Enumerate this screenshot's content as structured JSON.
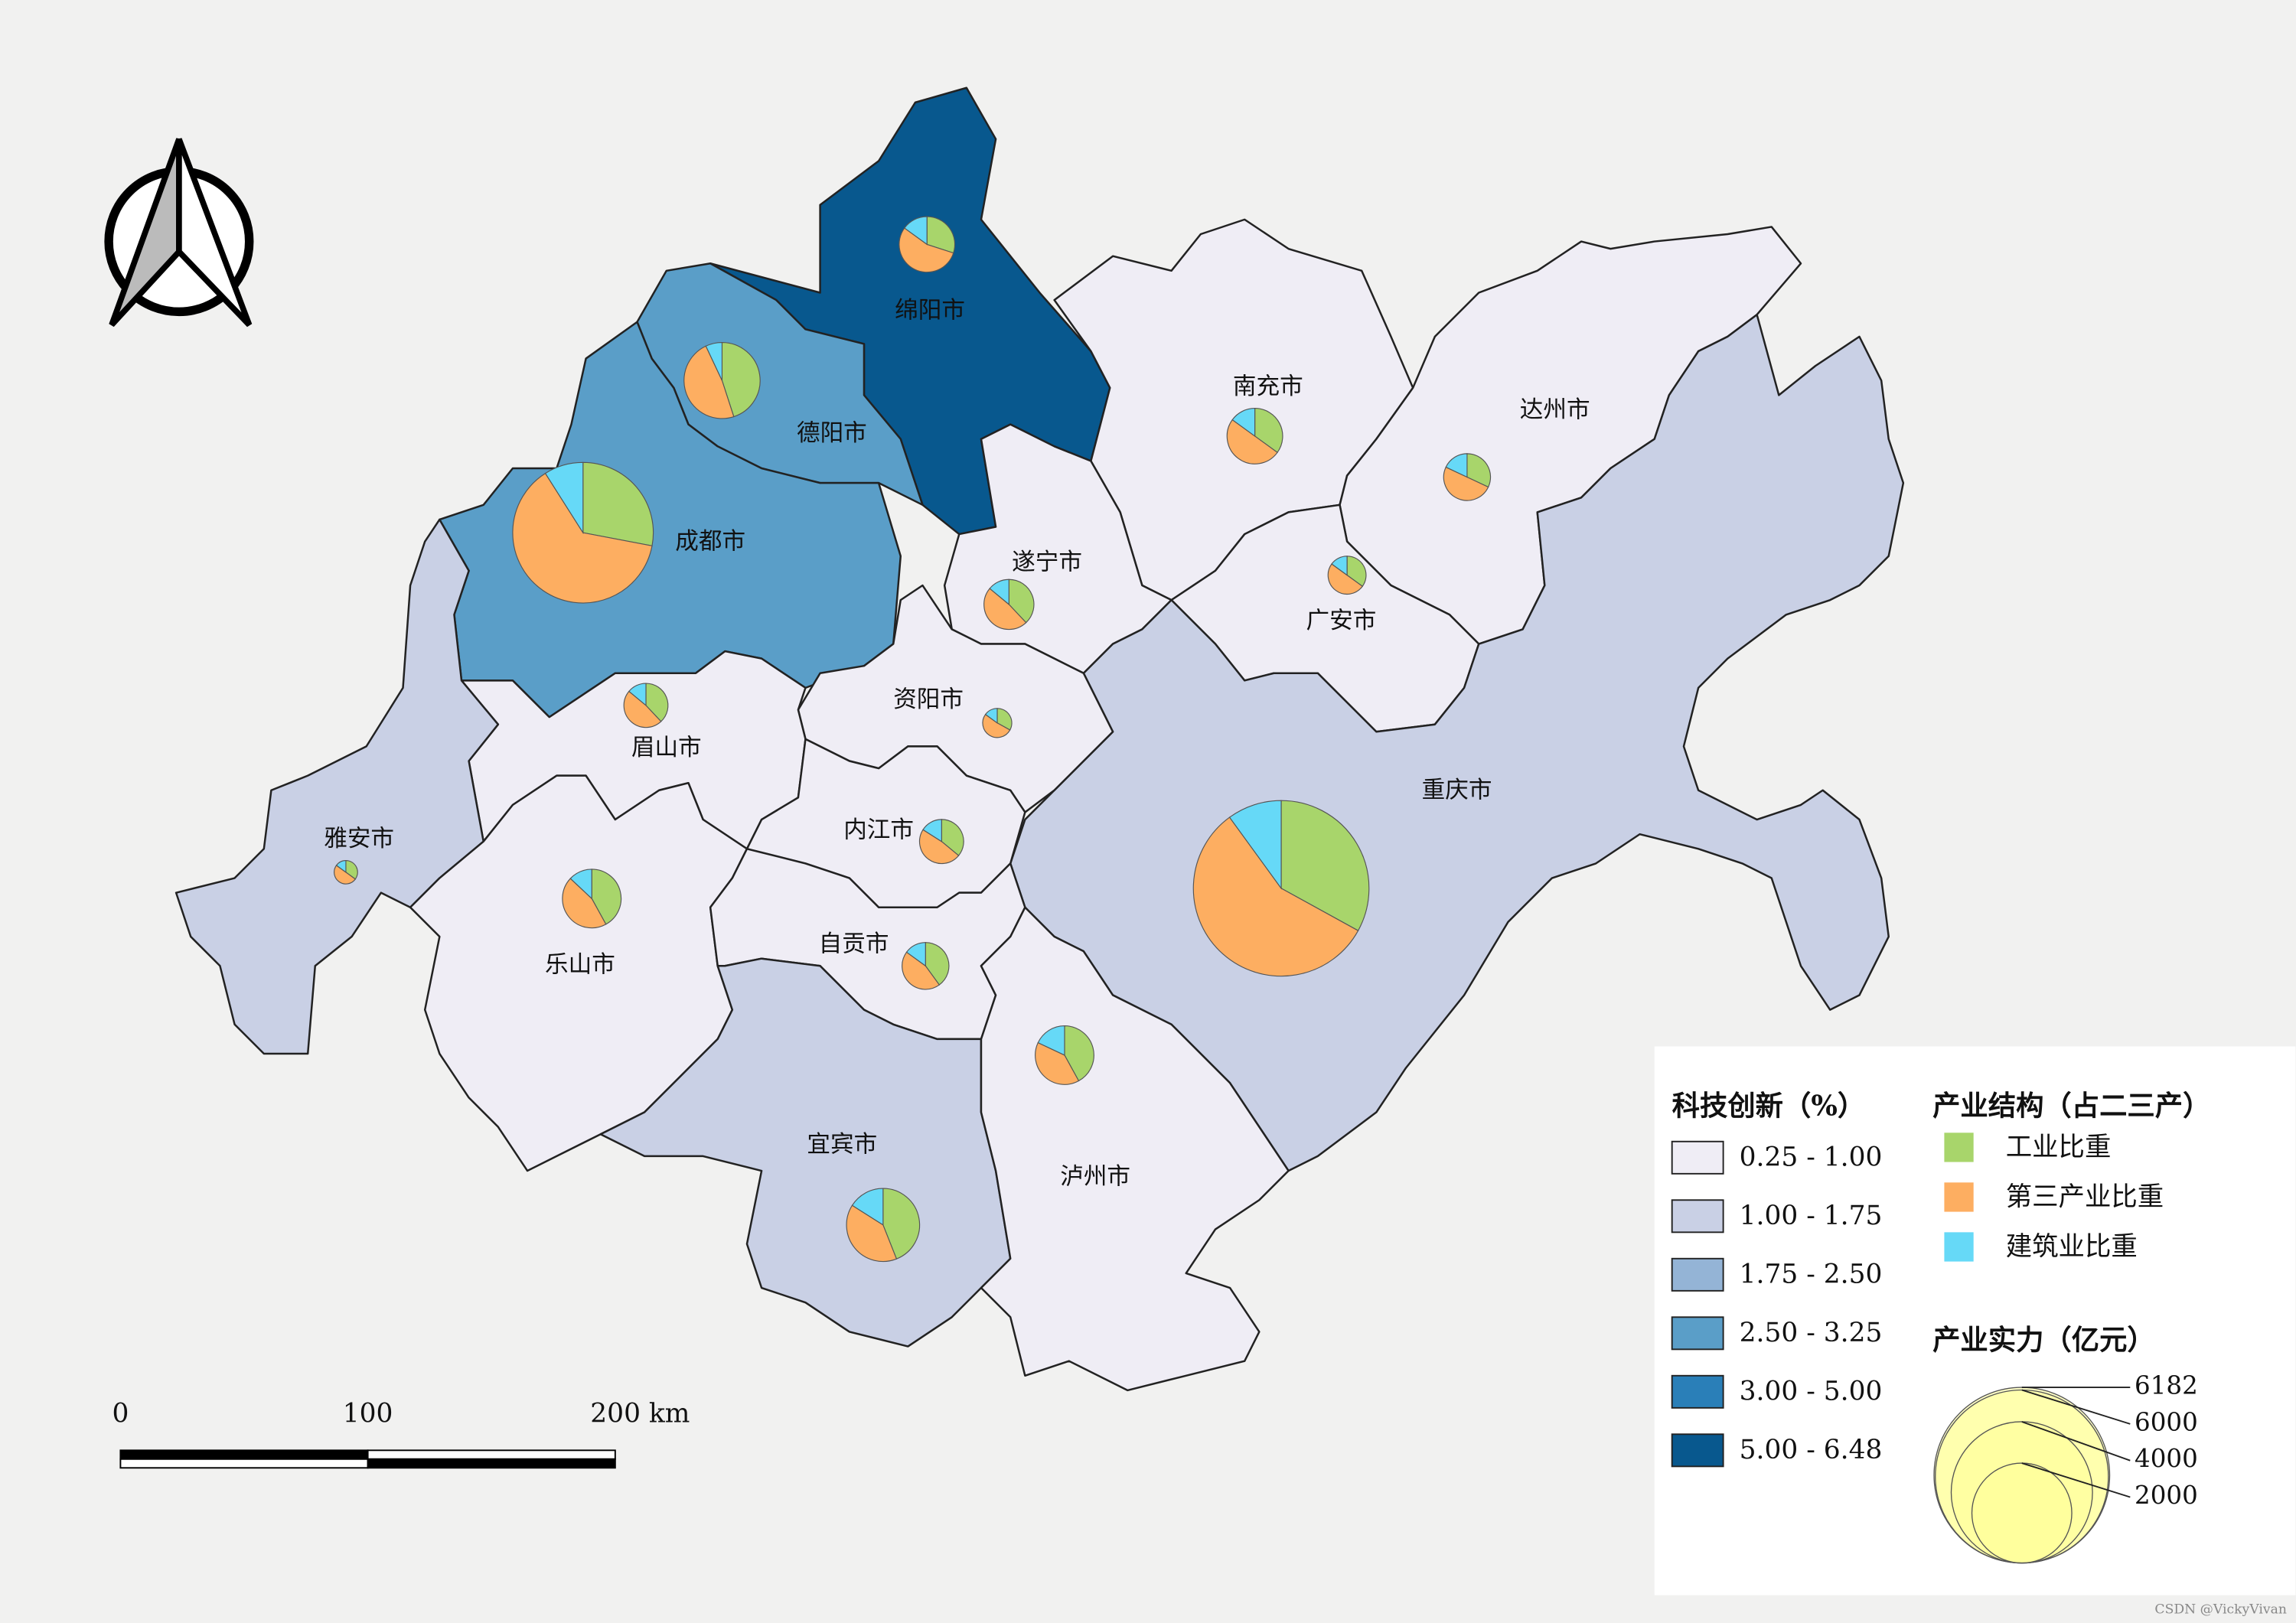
{
  "map": {
    "cities": [
      {
        "name": "绵阳市",
        "color": "#08588e",
        "shares": [
          30,
          55,
          15
        ],
        "strength": 620
      },
      {
        "name": "德阳市",
        "color": "#5a9ec8",
        "shares": [
          45,
          48,
          7
        ],
        "strength": 1160
      },
      {
        "name": "成都市",
        "color": "#5a9ec8",
        "shares": [
          28,
          63,
          9
        ],
        "strength": 3960
      },
      {
        "name": "南充市",
        "color": "#efedf5",
        "shares": [
          35,
          50,
          15
        ],
        "strength": 620
      },
      {
        "name": "达州市",
        "color": "#efedf5",
        "shares": [
          32,
          50,
          18
        ],
        "strength": 440
      },
      {
        "name": "遂宁市",
        "color": "#efedf5",
        "shares": [
          38,
          48,
          14
        ],
        "strength": 500
      },
      {
        "name": "广安市",
        "color": "#efedf5",
        "shares": [
          35,
          50,
          15
        ],
        "strength": 290
      },
      {
        "name": "重庆市",
        "color": "#c9d0e5",
        "shares": [
          33,
          57,
          10
        ],
        "strength": 6182
      },
      {
        "name": "资阳市",
        "color": "#efedf5",
        "shares": [
          33,
          52,
          15
        ],
        "strength": 170
      },
      {
        "name": "眉山市",
        "color": "#efedf5",
        "shares": [
          38,
          48,
          14
        ],
        "strength": 390
      },
      {
        "name": "雅安市",
        "color": "#c9d0e5",
        "shares": [
          35,
          50,
          15
        ],
        "strength": 110
      },
      {
        "name": "乐山市",
        "color": "#efedf5",
        "shares": [
          42,
          45,
          13
        ],
        "strength": 690
      },
      {
        "name": "内江市",
        "color": "#efedf5",
        "shares": [
          36,
          48,
          16
        ],
        "strength": 390
      },
      {
        "name": "自贡市",
        "color": "#efedf5",
        "shares": [
          40,
          45,
          15
        ],
        "strength": 440
      },
      {
        "name": "宜宾市",
        "color": "#c9d0e5",
        "shares": [
          44,
          40,
          16
        ],
        "strength": 1070
      },
      {
        "name": "泸州市",
        "color": "#efedf5",
        "shares": [
          42,
          40,
          18
        ],
        "strength": 690
      }
    ],
    "legend_innovation": {
      "title": "科技创新（%）",
      "classes": [
        {
          "label": "0.25 - 1.00",
          "color": "#efedf5"
        },
        {
          "label": "1.00 - 1.75",
          "color": "#c9d0e5"
        },
        {
          "label": "1.75 - 2.50",
          "color": "#94b4d6"
        },
        {
          "label": "2.50 - 3.25",
          "color": "#5a9ec8"
        },
        {
          "label": "3.00 - 5.00",
          "color": "#2a7fb8"
        },
        {
          "label": "5.00 - 6.48",
          "color": "#08588e"
        }
      ]
    },
    "legend_structure": {
      "title": "产业结构（占二三产）",
      "series": [
        {
          "name": "工业比重",
          "color": "#a8d56b"
        },
        {
          "name": "第三产业比重",
          "color": "#fdae61"
        },
        {
          "name": "建筑业比重",
          "color": "#66d9f7"
        }
      ]
    },
    "legend_strength": {
      "title": "产业实力（亿元）",
      "values": [
        6182,
        6000,
        4000,
        2000
      ]
    },
    "scale_bar": {
      "labels": [
        "0",
        "100",
        "200 km"
      ]
    },
    "watermark": "CSDN @VickyVivan"
  }
}
